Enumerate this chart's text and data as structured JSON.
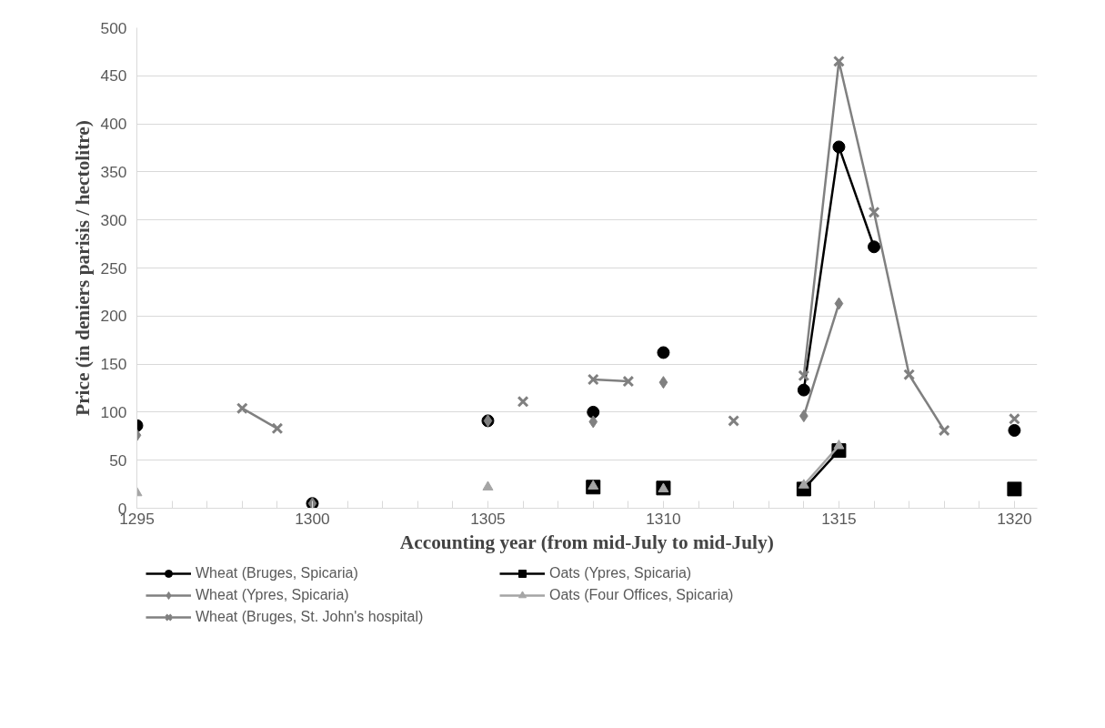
{
  "chart_data": {
    "type": "line",
    "xlabel": "Accounting year (from mid-July to mid-July)",
    "ylabel": "Price (in deniers parisis / hectolitre)",
    "x": [
      1295,
      1296,
      1297,
      1298,
      1299,
      1300,
      1301,
      1302,
      1303,
      1304,
      1305,
      1306,
      1307,
      1308,
      1309,
      1310,
      1311,
      1312,
      1313,
      1314,
      1315,
      1316,
      1317,
      1318,
      1319,
      1320
    ],
    "series": [
      {
        "name": "Wheat (Bruges, Spicaria)",
        "color": "#000000",
        "marker": "circle",
        "values": [
          86,
          null,
          null,
          null,
          null,
          5,
          null,
          null,
          null,
          null,
          91,
          null,
          null,
          100,
          null,
          162,
          null,
          null,
          null,
          123,
          376,
          272,
          null,
          null,
          null,
          81
        ]
      },
      {
        "name": "Oats (Ypres, Spicaria)",
        "color": "#000000",
        "marker": "square",
        "values": [
          null,
          null,
          null,
          null,
          null,
          null,
          null,
          null,
          null,
          null,
          null,
          null,
          null,
          22,
          null,
          21,
          null,
          null,
          null,
          20,
          60,
          null,
          null,
          null,
          null,
          20
        ]
      },
      {
        "name": "Wheat (Ypres, Spicaria)",
        "color": "#808080",
        "marker": "diamond",
        "values": [
          76,
          null,
          null,
          null,
          null,
          5,
          null,
          null,
          null,
          null,
          91,
          null,
          null,
          90,
          null,
          131,
          null,
          null,
          null,
          96,
          213,
          null,
          null,
          null,
          null,
          null
        ]
      },
      {
        "name": "Oats (Four Offices, Spicaria)",
        "color": "#a5a5a5",
        "marker": "triangle",
        "values": [
          16,
          null,
          null,
          null,
          null,
          null,
          null,
          null,
          null,
          null,
          22,
          null,
          null,
          23,
          null,
          20,
          null,
          null,
          null,
          24,
          65,
          null,
          null,
          null,
          null,
          null
        ]
      },
      {
        "name": "Wheat (Bruges, St. John's hospital)",
        "color": "#808080",
        "marker": "cross",
        "values": [
          null,
          null,
          null,
          104,
          83,
          null,
          null,
          null,
          null,
          null,
          null,
          111,
          null,
          134,
          132,
          null,
          null,
          91,
          null,
          138,
          465,
          308,
          139,
          81,
          null,
          93
        ]
      }
    ],
    "xlim": [
      1295,
      1320.65
    ],
    "xticks": [
      1295,
      {
        "value": 1296,
        "label": null
      },
      {
        "value": 1297,
        "label": null
      },
      {
        "value": 1298,
        "label": null
      },
      {
        "value": 1299,
        "label": null
      },
      1300,
      {
        "value": 1301,
        "label": null
      },
      {
        "value": 1302,
        "label": null
      },
      {
        "value": 1303,
        "label": null
      },
      {
        "value": 1304,
        "label": null
      },
      1305,
      {
        "value": 1306,
        "label": null
      },
      {
        "value": 1307,
        "label": null
      },
      {
        "value": 1308,
        "label": null
      },
      {
        "value": 1309,
        "label": null
      },
      1310,
      {
        "value": 1311,
        "label": null
      },
      {
        "value": 1312,
        "label": null
      },
      {
        "value": 1313,
        "label": null
      },
      {
        "value": 1314,
        "label": null
      },
      1315,
      {
        "value": 1316,
        "label": null
      },
      {
        "value": 1317,
        "label": null
      },
      {
        "value": 1318,
        "label": null
      },
      {
        "value": 1319,
        "label": null
      },
      1320
    ],
    "ylim": [
      0,
      500
    ],
    "yticks": [
      0,
      50,
      100,
      150,
      200,
      250,
      300,
      350,
      400,
      450,
      500
    ],
    "grid": "y",
    "legend": "bottom",
    "line_style": "solid"
  }
}
